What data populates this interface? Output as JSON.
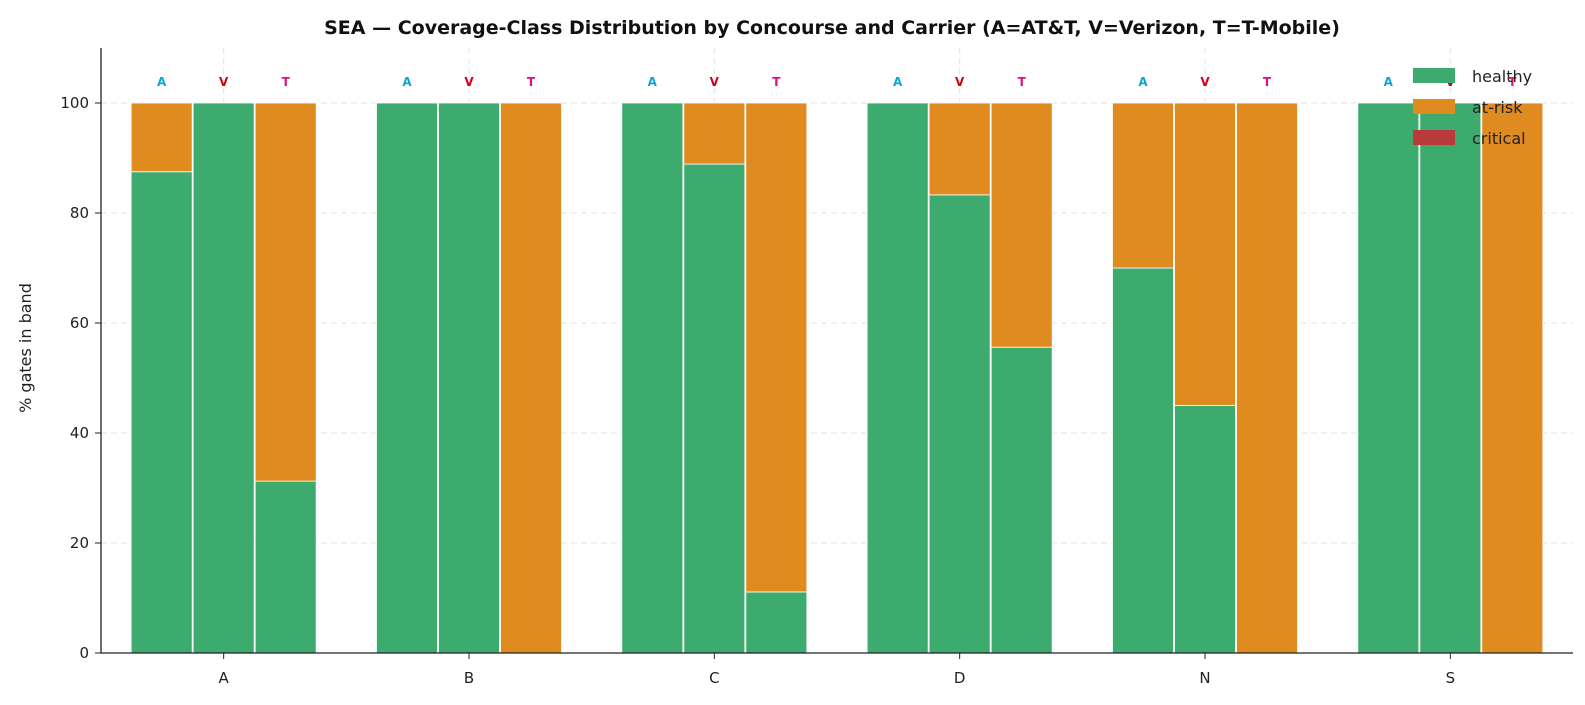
{
  "chart_data": {
    "type": "bar",
    "stacked": true,
    "title": "SEA — Coverage-Class Distribution by Concourse and Carrier (A=AT&T, V=Verizon, T=T-Mobile)",
    "xlabel": "",
    "ylabel": "% gates in band",
    "ylim": [
      0,
      110
    ],
    "yticks": [
      "0",
      "20",
      "40",
      "60",
      "80",
      "100"
    ],
    "grid": true,
    "legend_position": "top-right",
    "categories": [
      "A",
      "B",
      "C",
      "D",
      "N",
      "S"
    ],
    "carriers": [
      {
        "code": "A",
        "label": "A",
        "color": "#0aa5d6"
      },
      {
        "code": "V",
        "label": "V",
        "color": "#d0021b"
      },
      {
        "code": "T",
        "label": "T",
        "color": "#e0117a"
      }
    ],
    "classes": [
      {
        "name": "healthy",
        "color": "#3daa6e"
      },
      {
        "name": "at-risk",
        "color": "#e08b1f"
      },
      {
        "name": "critical",
        "color": "#b83a3a"
      }
    ],
    "data": {
      "A": {
        "A": [
          87.5,
          12.5,
          0
        ],
        "V": [
          100,
          0,
          0
        ],
        "T": [
          31.25,
          68.75,
          0
        ]
      },
      "B": {
        "A": [
          100,
          0,
          0
        ],
        "V": [
          100,
          0,
          0
        ],
        "T": [
          0,
          100,
          0
        ]
      },
      "C": {
        "A": [
          100,
          0,
          0
        ],
        "V": [
          88.9,
          11.1,
          0
        ],
        "T": [
          11.1,
          88.9,
          0
        ]
      },
      "D": {
        "A": [
          100,
          0,
          0
        ],
        "V": [
          83.3,
          16.7,
          0
        ],
        "T": [
          55.6,
          44.4,
          0
        ]
      },
      "N": {
        "A": [
          70,
          30,
          0
        ],
        "V": [
          45,
          55,
          0
        ],
        "T": [
          0,
          100,
          0
        ]
      },
      "S": {
        "A": [
          100,
          0,
          0
        ],
        "V": [
          100,
          0,
          0
        ],
        "T": [
          0,
          100,
          0
        ]
      }
    }
  }
}
